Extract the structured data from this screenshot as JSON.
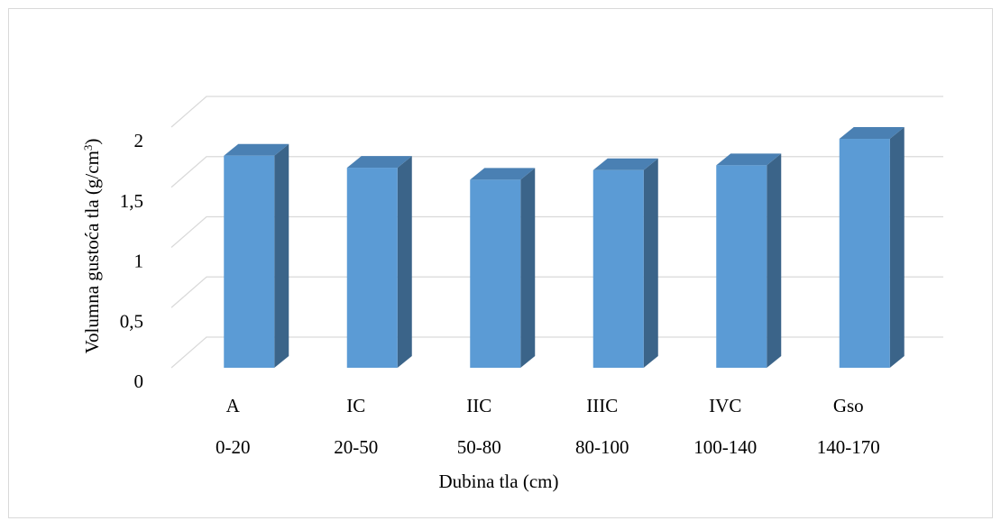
{
  "chart_data": {
    "type": "bar",
    "style": "3d-column",
    "categories": [
      {
        "horizon": "A",
        "depth": "0-20"
      },
      {
        "horizon": "IC",
        "depth": "20-50"
      },
      {
        "horizon": "IIC",
        "depth": "50-80"
      },
      {
        "horizon": "IIIC",
        "depth": "80-100"
      },
      {
        "horizon": "IVC",
        "depth": "100-140"
      },
      {
        "horizon": "Gso",
        "depth": "140-170"
      }
    ],
    "values": [
      1.71,
      1.61,
      1.51,
      1.59,
      1.63,
      1.85
    ],
    "xlabel": "Dubina tla (cm)",
    "ylabel_main": "Volumna gustoća tla (g/cm",
    "ylabel_sup": "3",
    "ylabel_end": ")",
    "ylim": [
      0,
      2
    ],
    "yticks": [
      "0",
      "0,5",
      "1",
      "1,5",
      "2"
    ],
    "grid": true,
    "legend": "none",
    "colors": {
      "bar_front": "#5b9bd5",
      "bar_side": "#3b6489",
      "bar_top": "#4a80b3",
      "grid": "#d9d9d9"
    }
  }
}
